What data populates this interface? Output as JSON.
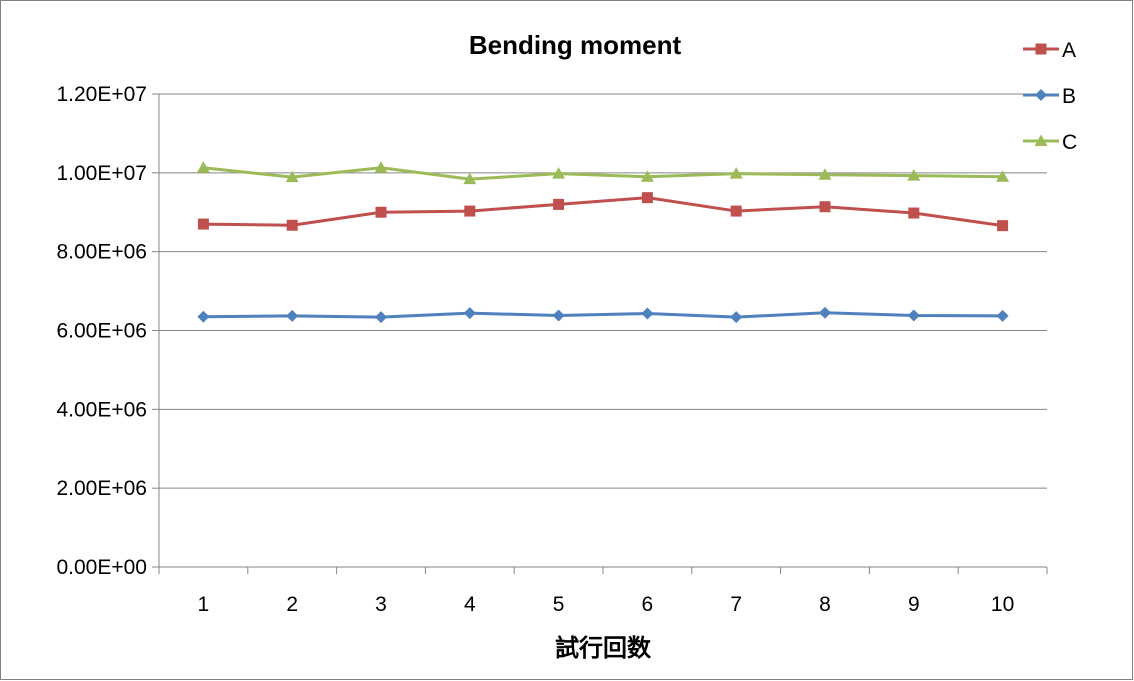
{
  "chart_data": {
    "type": "line",
    "title": "Bending moment",
    "xlabel": "試行回数",
    "ylabel": "",
    "categories": [
      "1",
      "2",
      "3",
      "4",
      "5",
      "6",
      "7",
      "8",
      "9",
      "10"
    ],
    "ylim": [
      0,
      12000000
    ],
    "y_ticks": [
      0,
      2000000,
      4000000,
      6000000,
      8000000,
      10000000,
      12000000
    ],
    "y_tick_labels": [
      "0.00E+00",
      "2.00E+06",
      "4.00E+06",
      "6.00E+06",
      "8.00E+06",
      "1.00E+07",
      "1.20E+07"
    ],
    "grid": true,
    "legend_position": "top-right",
    "series": [
      {
        "name": "A",
        "color": "#c0504d",
        "marker": "square",
        "values": [
          8700000,
          8670000,
          9000000,
          9030000,
          9200000,
          9370000,
          9030000,
          9140000,
          8980000,
          8660000
        ]
      },
      {
        "name": "B",
        "color": "#4f81bd",
        "marker": "diamond",
        "values": [
          6350000,
          6370000,
          6340000,
          6440000,
          6380000,
          6430000,
          6340000,
          6450000,
          6380000,
          6370000
        ]
      },
      {
        "name": "C",
        "color": "#9bbb59",
        "marker": "triangle",
        "values": [
          10130000,
          9890000,
          10130000,
          9840000,
          9980000,
          9900000,
          9980000,
          9950000,
          9930000,
          9900000
        ]
      }
    ]
  }
}
